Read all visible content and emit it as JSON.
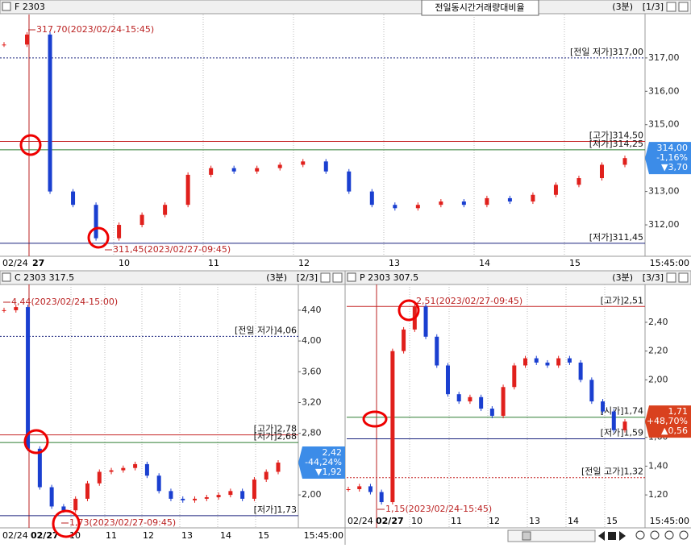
{
  "panels": [
    {
      "title": "F 2303",
      "period": "(3분)",
      "page": "[1/3]",
      "button": "전일동시간거래량대비율",
      "ylim": [
        311.06,
        318.3
      ],
      "yticks": [
        {
          "value": 317,
          "label": "317,00"
        },
        {
          "value": 316,
          "label": "316,00"
        },
        {
          "value": 315,
          "label": "315,00"
        },
        {
          "value": 313,
          "label": "313,00"
        },
        {
          "value": 312,
          "label": "312,00"
        }
      ],
      "values": [
        317.4,
        317.7,
        313.0,
        312.6,
        311.6,
        312.0,
        312.3,
        312.6,
        313.5,
        313.7,
        313.6,
        313.7,
        313.8,
        313.9,
        313.6,
        313.0,
        312.6,
        312.5,
        312.6,
        312.7,
        312.6,
        312.8,
        312.7,
        312.9,
        313.2,
        313.4,
        313.8,
        314.0
      ],
      "levels": [
        {
          "label": "[전일 저가]317,00",
          "value": 317,
          "color": "#1a237e",
          "dash": true
        },
        {
          "label": "[고가]314,50",
          "value": 314.5,
          "color": "#c62828",
          "dash": false
        },
        {
          "label": "[저가]314,25",
          "value": 314.25,
          "color": "#2e7d32",
          "dash": false
        },
        {
          "label": "[저가]311,45",
          "value": 311.45,
          "color": "#1a237e",
          "dash": false
        }
      ],
      "extremes": [
        "317,70(2023/02/24-15:45)",
        "311,45(2023/02/27-09:45)"
      ],
      "box": {
        "price": {
          "value": 314,
          "label": "314,00"
        },
        "change": "-1,16%",
        "diff": "▼3,70",
        "color": "#3c8ce8"
      },
      "xlabels": [
        "02/24",
        "27",
        "10",
        "11",
        "12",
        "13",
        "14",
        "15"
      ],
      "end_time": "15:45:00"
    },
    {
      "title": "C 2303 317.5",
      "period": "(3분)",
      "page": "[2/3]",
      "ylim": [
        1.572,
        4.734
      ],
      "yticks": [
        {
          "value": 4.4,
          "label": "4,40"
        },
        {
          "value": 4,
          "label": "4,00"
        },
        {
          "value": 3.6,
          "label": "3,60"
        },
        {
          "value": 3.2,
          "label": "3,20"
        },
        {
          "value": 2.8,
          "label": "2,80"
        },
        {
          "value": 2,
          "label": "2,00"
        }
      ],
      "values": [
        4.4,
        4.44,
        2.6,
        2.1,
        1.85,
        1.8,
        1.95,
        2.15,
        2.3,
        2.32,
        2.35,
        2.4,
        2.25,
        2.05,
        1.95,
        1.93,
        1.95,
        1.97,
        2.0,
        2.05,
        1.95,
        2.2,
        2.3,
        2.42
      ],
      "levels": [
        {
          "label": "[전일 저가]4,06",
          "value": 4.06,
          "color": "#1a237e",
          "dash": true
        },
        {
          "label": "[고가]2,78",
          "value": 2.78,
          "color": "#c62828",
          "dash": false
        },
        {
          "label": "[저가]2,68",
          "value": 2.68,
          "color": "#2e7d32",
          "dash": false
        },
        {
          "label": "[저가]1,73",
          "value": 1.73,
          "color": "#1a237e",
          "dash": false
        }
      ],
      "extremes": [
        "4,44(2023/02/24-15:00)",
        "1,73(2023/02/27-09:45)"
      ],
      "box": {
        "price": {
          "value": 2.42,
          "label": "2,42"
        },
        "change": "-44,24%",
        "diff": "▼1,92",
        "color": "#3c8ce8"
      },
      "xlabels": [
        "02/24",
        "02/27",
        "10",
        "11",
        "12",
        "13",
        "14",
        "15"
      ],
      "end_time": "15:45:00"
    },
    {
      "title": "P 2303 307.5",
      "period": "(3분)",
      "page": "[3/3]",
      "ylim": [
        0.971,
        2.663
      ],
      "yticks": [
        {
          "value": 2.4,
          "label": "2,40"
        },
        {
          "value": 2.2,
          "label": "2,20"
        },
        {
          "value": 2,
          "label": "2,00"
        },
        {
          "value": 1.6,
          "label": "1,60"
        },
        {
          "value": 1.4,
          "label": "1,40"
        },
        {
          "value": 1.2,
          "label": "1,20"
        }
      ],
      "values": [
        1.24,
        1.26,
        1.22,
        1.15,
        2.2,
        2.35,
        2.51,
        2.3,
        2.1,
        1.9,
        1.85,
        1.88,
        1.8,
        1.75,
        1.95,
        2.1,
        2.15,
        2.12,
        2.1,
        2.15,
        2.12,
        2.0,
        1.85,
        1.78,
        1.65,
        1.71
      ],
      "levels": [
        {
          "label": "[고가]2,51",
          "value": 2.51,
          "color": "#c62828",
          "dash": false
        },
        {
          "label": "[시가]1,74",
          "value": 1.74,
          "color": "#2e7d32",
          "dash": false
        },
        {
          "label": "[저가]1,59",
          "value": 1.59,
          "color": "#1a237e",
          "dash": false
        },
        {
          "label": "[전일 고가]1,32",
          "value": 1.32,
          "color": "#c62828",
          "dash": true
        }
      ],
      "extremes": [
        "2,51(2023/02/27-09:45)",
        "1,15(2023/02/24-15:45)"
      ],
      "box": {
        "price": {
          "value": 1.71,
          "label": "1,71"
        },
        "change": "+48,70%",
        "diff": "▲0,56",
        "color": "#d9411e"
      },
      "xlabels": [
        "02/24",
        "02/27",
        "10",
        "11",
        "12",
        "13",
        "14",
        "15"
      ],
      "end_time": "15:45:00"
    }
  ]
}
